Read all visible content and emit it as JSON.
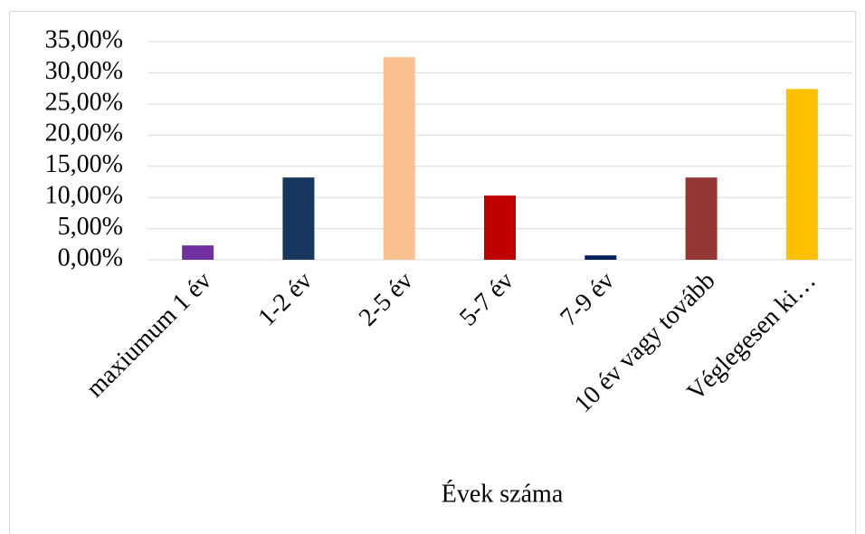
{
  "chart_data": {
    "type": "bar",
    "x_label": "Évek száma",
    "categories": [
      "maxiumum 1 év",
      "1-2 év",
      "2-5 év",
      "5-7 év",
      "7-9 év",
      "10 év vagy tovább",
      "Véglegesen ki…"
    ],
    "values": [
      2.3,
      13.2,
      32.5,
      10.3,
      0.7,
      13.2,
      27.4
    ],
    "colors": [
      "#7030a0",
      "#17375e",
      "#fac090",
      "#c00000",
      "#002060",
      "#953735",
      "#ffc000"
    ],
    "ylim": [
      0,
      35
    ],
    "yticks": [
      {
        "value": 0,
        "label": "0,00%"
      },
      {
        "value": 5,
        "label": "5,00%"
      },
      {
        "value": 10,
        "label": "10,00%"
      },
      {
        "value": 15,
        "label": "15,00%"
      },
      {
        "value": 20,
        "label": "20,00%"
      },
      {
        "value": 25,
        "label": "25,00%"
      },
      {
        "value": 30,
        "label": "30,00%"
      },
      {
        "value": 35,
        "label": "35,00%"
      }
    ],
    "grid": true
  }
}
